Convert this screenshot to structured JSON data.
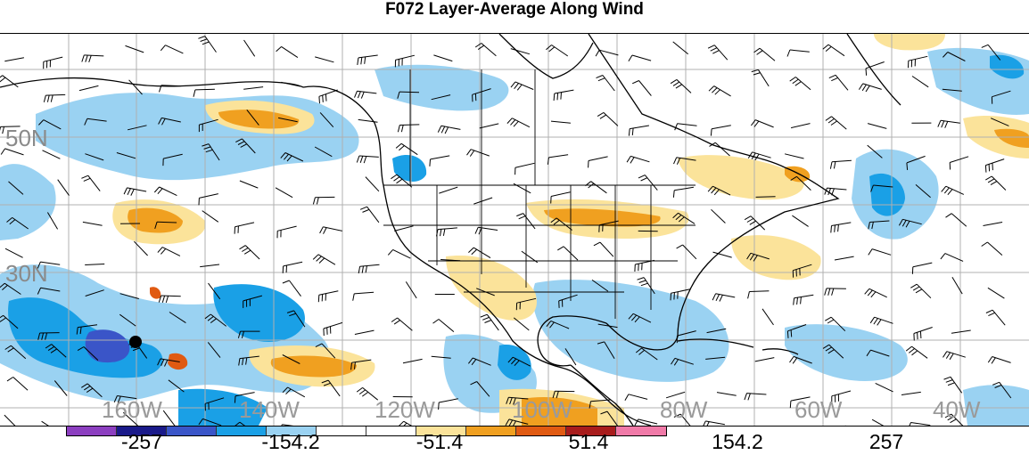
{
  "title": "F072 Layer-Average Along Wind",
  "latitude_labels": [
    "50N",
    "30N"
  ],
  "longitude_labels": [
    "160W",
    "140W",
    "120W",
    "100W",
    "80W",
    "60W",
    "40W"
  ],
  "colorbar": {
    "colors": [
      "#8c3fc0",
      "#1a1a8a",
      "#3a55c8",
      "#1aa0e6",
      "#9ad2f2",
      "#ffffff",
      "#ffffff",
      "#fbe39a",
      "#f0a020",
      "#e05a12",
      "#a81c1c",
      "#f07aa8"
    ],
    "tick_labels": [
      "-257",
      "-154.2",
      "-51.4",
      "51.4",
      "154.2",
      "257"
    ]
  },
  "marker": {
    "name": "location-dot"
  }
}
